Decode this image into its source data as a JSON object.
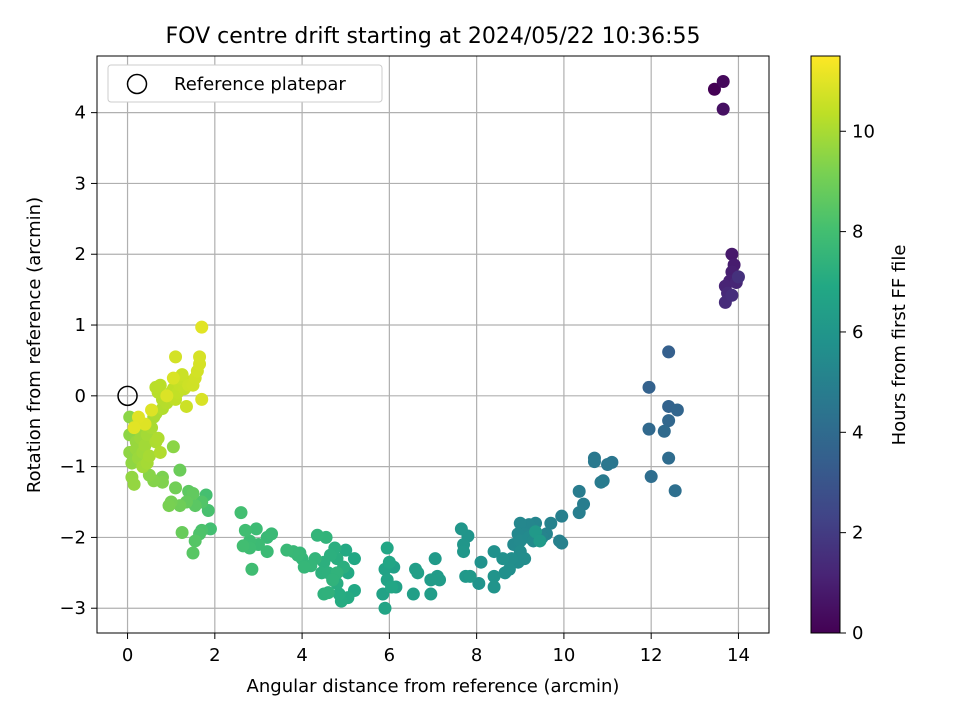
{
  "chart_data": {
    "type": "scatter",
    "title": "FOV centre drift starting at 2024/05/22 10:36:55",
    "xlabel": "Angular distance from reference (arcmin)",
    "ylabel": "Rotation from reference (arcmin)",
    "xlim": [
      -0.7,
      14.7
    ],
    "ylim": [
      -3.35,
      4.8
    ],
    "xticks": [
      0,
      2,
      4,
      6,
      8,
      10,
      12,
      14
    ],
    "yticks": [
      -3,
      -2,
      -1,
      0,
      1,
      2,
      3,
      4
    ],
    "xtick_labels": [
      "0",
      "2",
      "4",
      "6",
      "8",
      "10",
      "12",
      "14"
    ],
    "ytick_labels": [
      "−3",
      "−2",
      "−1",
      "0",
      "1",
      "2",
      "3",
      "4"
    ],
    "grid": true,
    "legend": {
      "placement": "top-left",
      "entries": [
        "Reference platepar"
      ]
    },
    "reference_point": {
      "x": 0,
      "y": 0
    },
    "colorbar": {
      "label": "Hours from first FF file",
      "colormap": "viridis",
      "range": [
        0,
        11.5
      ],
      "ticks": [
        0,
        2,
        4,
        6,
        8,
        10
      ],
      "tick_labels": [
        "0",
        "2",
        "4",
        "6",
        "8",
        "10"
      ]
    },
    "series": [
      {
        "hours_range": [
          0,
          0.5
        ],
        "points": [
          [
            13.45,
            4.33
          ],
          [
            13.65,
            4.44
          ],
          [
            13.65,
            4.05
          ]
        ]
      },
      {
        "hours_range": [
          0.8,
          1.6
        ],
        "points": [
          [
            13.85,
            2.0
          ],
          [
            13.9,
            1.85
          ],
          [
            13.85,
            1.75
          ],
          [
            13.8,
            1.62
          ],
          [
            13.7,
            1.55
          ],
          [
            13.95,
            1.6
          ],
          [
            13.75,
            1.45
          ],
          [
            13.7,
            1.32
          ],
          [
            13.85,
            1.42
          ],
          [
            14.0,
            1.68
          ]
        ]
      },
      {
        "hours_range": [
          3.5,
          4.2
        ],
        "points": [
          [
            12.4,
            0.62
          ],
          [
            11.95,
            0.12
          ],
          [
            12.4,
            -0.15
          ],
          [
            12.6,
            -0.2
          ],
          [
            12.4,
            -0.35
          ],
          [
            11.95,
            -0.47
          ],
          [
            12.3,
            -0.5
          ],
          [
            12.4,
            -0.88
          ],
          [
            12.0,
            -1.14
          ],
          [
            12.55,
            -1.34
          ]
        ]
      },
      {
        "hours_range": [
          4.5,
          5.3
        ],
        "points": [
          [
            11.1,
            -0.94
          ],
          [
            11.0,
            -0.97
          ],
          [
            10.7,
            -0.88
          ],
          [
            10.7,
            -0.93
          ],
          [
            10.9,
            -1.2
          ],
          [
            10.85,
            -1.22
          ],
          [
            10.35,
            -1.35
          ],
          [
            10.45,
            -1.53
          ],
          [
            10.35,
            -1.65
          ],
          [
            9.95,
            -1.7
          ],
          [
            9.9,
            -2.05
          ],
          [
            9.95,
            -2.08
          ],
          [
            9.7,
            -1.8
          ],
          [
            9.6,
            -1.95
          ],
          [
            9.5,
            -2.0
          ],
          [
            9.35,
            -1.8
          ],
          [
            9.2,
            -1.82
          ],
          [
            9.0,
            -1.8
          ]
        ]
      },
      {
        "hours_range": [
          5.3,
          6.2
        ],
        "points": [
          [
            9.1,
            -1.95
          ],
          [
            8.95,
            -1.95
          ],
          [
            8.85,
            -2.1
          ],
          [
            9.0,
            -2.05
          ],
          [
            9.2,
            -2.0
          ],
          [
            9.3,
            -2.05
          ],
          [
            9.0,
            -2.2
          ],
          [
            9.1,
            -2.3
          ],
          [
            8.95,
            -2.35
          ],
          [
            8.8,
            -2.3
          ],
          [
            8.75,
            -2.45
          ],
          [
            8.65,
            -2.5
          ],
          [
            8.6,
            -2.3
          ],
          [
            8.4,
            -2.2
          ],
          [
            8.1,
            -2.35
          ],
          [
            8.05,
            -2.65
          ],
          [
            8.4,
            -2.55
          ],
          [
            8.4,
            -2.7
          ],
          [
            7.8,
            -1.98
          ],
          [
            7.65,
            -1.88
          ],
          [
            7.7,
            -2.1
          ],
          [
            7.7,
            -2.2
          ],
          [
            7.75,
            -2.55
          ],
          [
            7.85,
            -2.55
          ],
          [
            9.35,
            -1.92
          ],
          [
            9.45,
            -2.05
          ]
        ]
      },
      {
        "hours_range": [
          6.2,
          7.2
        ],
        "points": [
          [
            7.05,
            -2.3
          ],
          [
            7.1,
            -2.55
          ],
          [
            7.15,
            -2.6
          ],
          [
            6.95,
            -2.6
          ],
          [
            6.95,
            -2.8
          ],
          [
            6.6,
            -2.45
          ],
          [
            6.55,
            -2.8
          ],
          [
            6.65,
            -2.5
          ],
          [
            6.1,
            -2.42
          ],
          [
            6.15,
            -2.7
          ],
          [
            5.9,
            -2.45
          ],
          [
            5.85,
            -2.8
          ],
          [
            5.95,
            -2.6
          ],
          [
            5.9,
            -3.0
          ],
          [
            6.0,
            -2.35
          ],
          [
            5.95,
            -2.15
          ],
          [
            6.05,
            -2.7
          ],
          [
            5.2,
            -2.3
          ],
          [
            5.2,
            -2.75
          ],
          [
            5.05,
            -2.5
          ],
          [
            5.0,
            -2.18
          ],
          [
            5.05,
            -2.85
          ],
          [
            4.9,
            -2.9
          ],
          [
            4.85,
            -2.8
          ],
          [
            4.8,
            -2.65
          ],
          [
            4.8,
            -2.3
          ],
          [
            4.95,
            -2.42
          ]
        ]
      },
      {
        "hours_range": [
          7.2,
          8.0
        ],
        "points": [
          [
            4.75,
            -2.15
          ],
          [
            4.65,
            -2.25
          ],
          [
            4.5,
            -2.35
          ],
          [
            4.45,
            -2.5
          ],
          [
            4.6,
            -2.5
          ],
          [
            4.5,
            -2.8
          ],
          [
            4.6,
            -2.78
          ],
          [
            4.8,
            -2.5
          ],
          [
            4.7,
            -2.6
          ],
          [
            4.55,
            -2.0
          ],
          [
            4.35,
            -1.97
          ],
          [
            4.3,
            -2.3
          ],
          [
            4.2,
            -2.4
          ],
          [
            4.0,
            -2.3
          ],
          [
            4.05,
            -2.42
          ],
          [
            3.95,
            -2.22
          ],
          [
            3.9,
            -2.25
          ],
          [
            3.8,
            -2.2
          ],
          [
            3.65,
            -2.18
          ],
          [
            3.2,
            -2.0
          ],
          [
            3.3,
            -1.95
          ],
          [
            3.2,
            -2.2
          ],
          [
            3.0,
            -2.1
          ],
          [
            2.95,
            -1.88
          ],
          [
            2.8,
            -2.05
          ],
          [
            2.8,
            -2.15
          ],
          [
            2.85,
            -2.45
          ],
          [
            2.7,
            -1.9
          ],
          [
            2.65,
            -2.12
          ],
          [
            2.6,
            -1.65
          ]
        ]
      },
      {
        "hours_range": [
          8.0,
          9.5
        ],
        "points": [
          [
            1.9,
            -1.88
          ],
          [
            1.8,
            -1.4
          ],
          [
            1.85,
            -1.62
          ],
          [
            1.7,
            -1.9
          ],
          [
            1.65,
            -1.95
          ],
          [
            1.7,
            -1.5
          ],
          [
            1.55,
            -2.05
          ],
          [
            1.5,
            -2.22
          ],
          [
            1.55,
            -1.55
          ],
          [
            1.4,
            -1.35
          ],
          [
            1.5,
            -1.38
          ],
          [
            1.35,
            -1.5
          ],
          [
            1.25,
            -1.93
          ],
          [
            1.2,
            -1.05
          ],
          [
            1.2,
            -1.55
          ],
          [
            1.1,
            -1.3
          ],
          [
            1.0,
            -1.5
          ],
          [
            0.95,
            -1.55
          ],
          [
            0.8,
            -1.15
          ],
          [
            0.8,
            -1.22
          ],
          [
            0.6,
            -1.2
          ],
          [
            0.5,
            -1.12
          ],
          [
            1.05,
            -0.72
          ]
        ]
      },
      {
        "hours_range": [
          9.5,
          11.0
        ],
        "points": [
          [
            0.05,
            -0.3
          ],
          [
            0.05,
            -0.55
          ],
          [
            0.05,
            -0.8
          ],
          [
            0.1,
            -0.95
          ],
          [
            0.1,
            -1.15
          ],
          [
            0.15,
            -1.25
          ],
          [
            0.2,
            -0.4
          ],
          [
            0.2,
            -0.65
          ],
          [
            0.2,
            -0.75
          ],
          [
            0.25,
            -0.88
          ],
          [
            0.3,
            -0.5
          ],
          [
            0.3,
            -0.6
          ],
          [
            0.35,
            -0.8
          ],
          [
            0.35,
            -1.0
          ],
          [
            0.4,
            -0.7
          ],
          [
            0.45,
            -0.55
          ],
          [
            0.45,
            -0.95
          ],
          [
            0.5,
            -0.85
          ],
          [
            0.55,
            -0.45
          ],
          [
            0.6,
            -0.3
          ],
          [
            0.65,
            -0.25
          ],
          [
            0.65,
            -0.65
          ],
          [
            0.7,
            -0.6
          ],
          [
            0.75,
            -0.8
          ],
          [
            0.8,
            -0.18
          ],
          [
            0.8,
            -0.05
          ],
          [
            0.9,
            -0.1
          ],
          [
            0.7,
            0.05
          ],
          [
            0.65,
            0.12
          ],
          [
            0.75,
            0.15
          ],
          [
            0.95,
            0.0
          ],
          [
            1.0,
            0.05
          ],
          [
            1.05,
            0.1
          ],
          [
            1.1,
            -0.05
          ],
          [
            1.15,
            0.05
          ],
          [
            1.2,
            0.15
          ],
          [
            1.3,
            0.1
          ],
          [
            1.35,
            0.2
          ],
          [
            1.2,
            0.25
          ],
          [
            1.25,
            0.3
          ],
          [
            1.35,
            -0.15
          ],
          [
            1.4,
            0.15
          ],
          [
            1.5,
            0.15
          ],
          [
            1.55,
            0.25
          ],
          [
            1.6,
            0.35
          ],
          [
            1.1,
            0.55
          ],
          [
            1.65,
            0.45
          ],
          [
            1.65,
            0.55
          ],
          [
            1.7,
            -0.05
          ],
          [
            1.05,
            0.25
          ],
          [
            0.9,
            0.0
          ],
          [
            0.55,
            -0.2
          ],
          [
            0.4,
            -0.4
          ],
          [
            0.25,
            -0.3
          ],
          [
            0.15,
            -0.45
          ]
        ]
      },
      {
        "hours_range": [
          11.0,
          11.5
        ],
        "points": [
          [
            1.7,
            0.97
          ]
        ]
      }
    ]
  }
}
